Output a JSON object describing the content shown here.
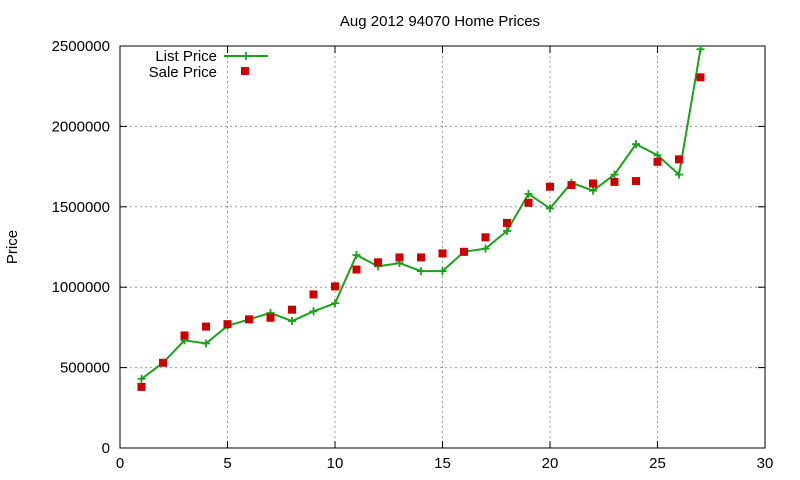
{
  "chart_data": {
    "type": "line",
    "title": "Aug 2012 94070 Home Prices",
    "xlabel": "",
    "ylabel": "Price",
    "xlim": [
      0,
      30
    ],
    "ylim": [
      0,
      2500000
    ],
    "x_ticks": [
      "0",
      "5",
      "10",
      "15",
      "20",
      "25",
      "30"
    ],
    "y_ticks": [
      "0",
      "500000",
      "1000000",
      "1500000",
      "2000000",
      "2500000"
    ],
    "grid": true,
    "legend_position": "top-left",
    "series": [
      {
        "name": "List Price",
        "style": "line-with-plus-markers",
        "color": "#1aa11a",
        "x": [
          1,
          2,
          3,
          4,
          5,
          6,
          7,
          8,
          9,
          10,
          11,
          12,
          13,
          14,
          15,
          16,
          17,
          18,
          19,
          20,
          21,
          22,
          23,
          24,
          25,
          26,
          27
        ],
        "y": [
          430000,
          530000,
          670000,
          650000,
          760000,
          800000,
          840000,
          790000,
          850000,
          900000,
          1200000,
          1130000,
          1150000,
          1100000,
          1100000,
          1220000,
          1240000,
          1350000,
          1580000,
          1490000,
          1650000,
          1600000,
          1700000,
          1890000,
          1820000,
          1700000,
          2480000
        ]
      },
      {
        "name": "Sale Price",
        "style": "square-markers",
        "color": "#cc0000",
        "x": [
          1,
          2,
          3,
          4,
          5,
          6,
          7,
          8,
          9,
          10,
          11,
          12,
          13,
          14,
          15,
          16,
          17,
          18,
          19,
          20,
          21,
          22,
          23,
          24,
          25,
          26,
          27
        ],
        "y": [
          380000,
          530000,
          700000,
          755000,
          770000,
          800000,
          810000,
          860000,
          955000,
          1005000,
          1110000,
          1155000,
          1185000,
          1185000,
          1210000,
          1220000,
          1310000,
          1400000,
          1525000,
          1625000,
          1635000,
          1645000,
          1655000,
          1660000,
          1780000,
          1795000,
          2305000
        ]
      }
    ]
  }
}
